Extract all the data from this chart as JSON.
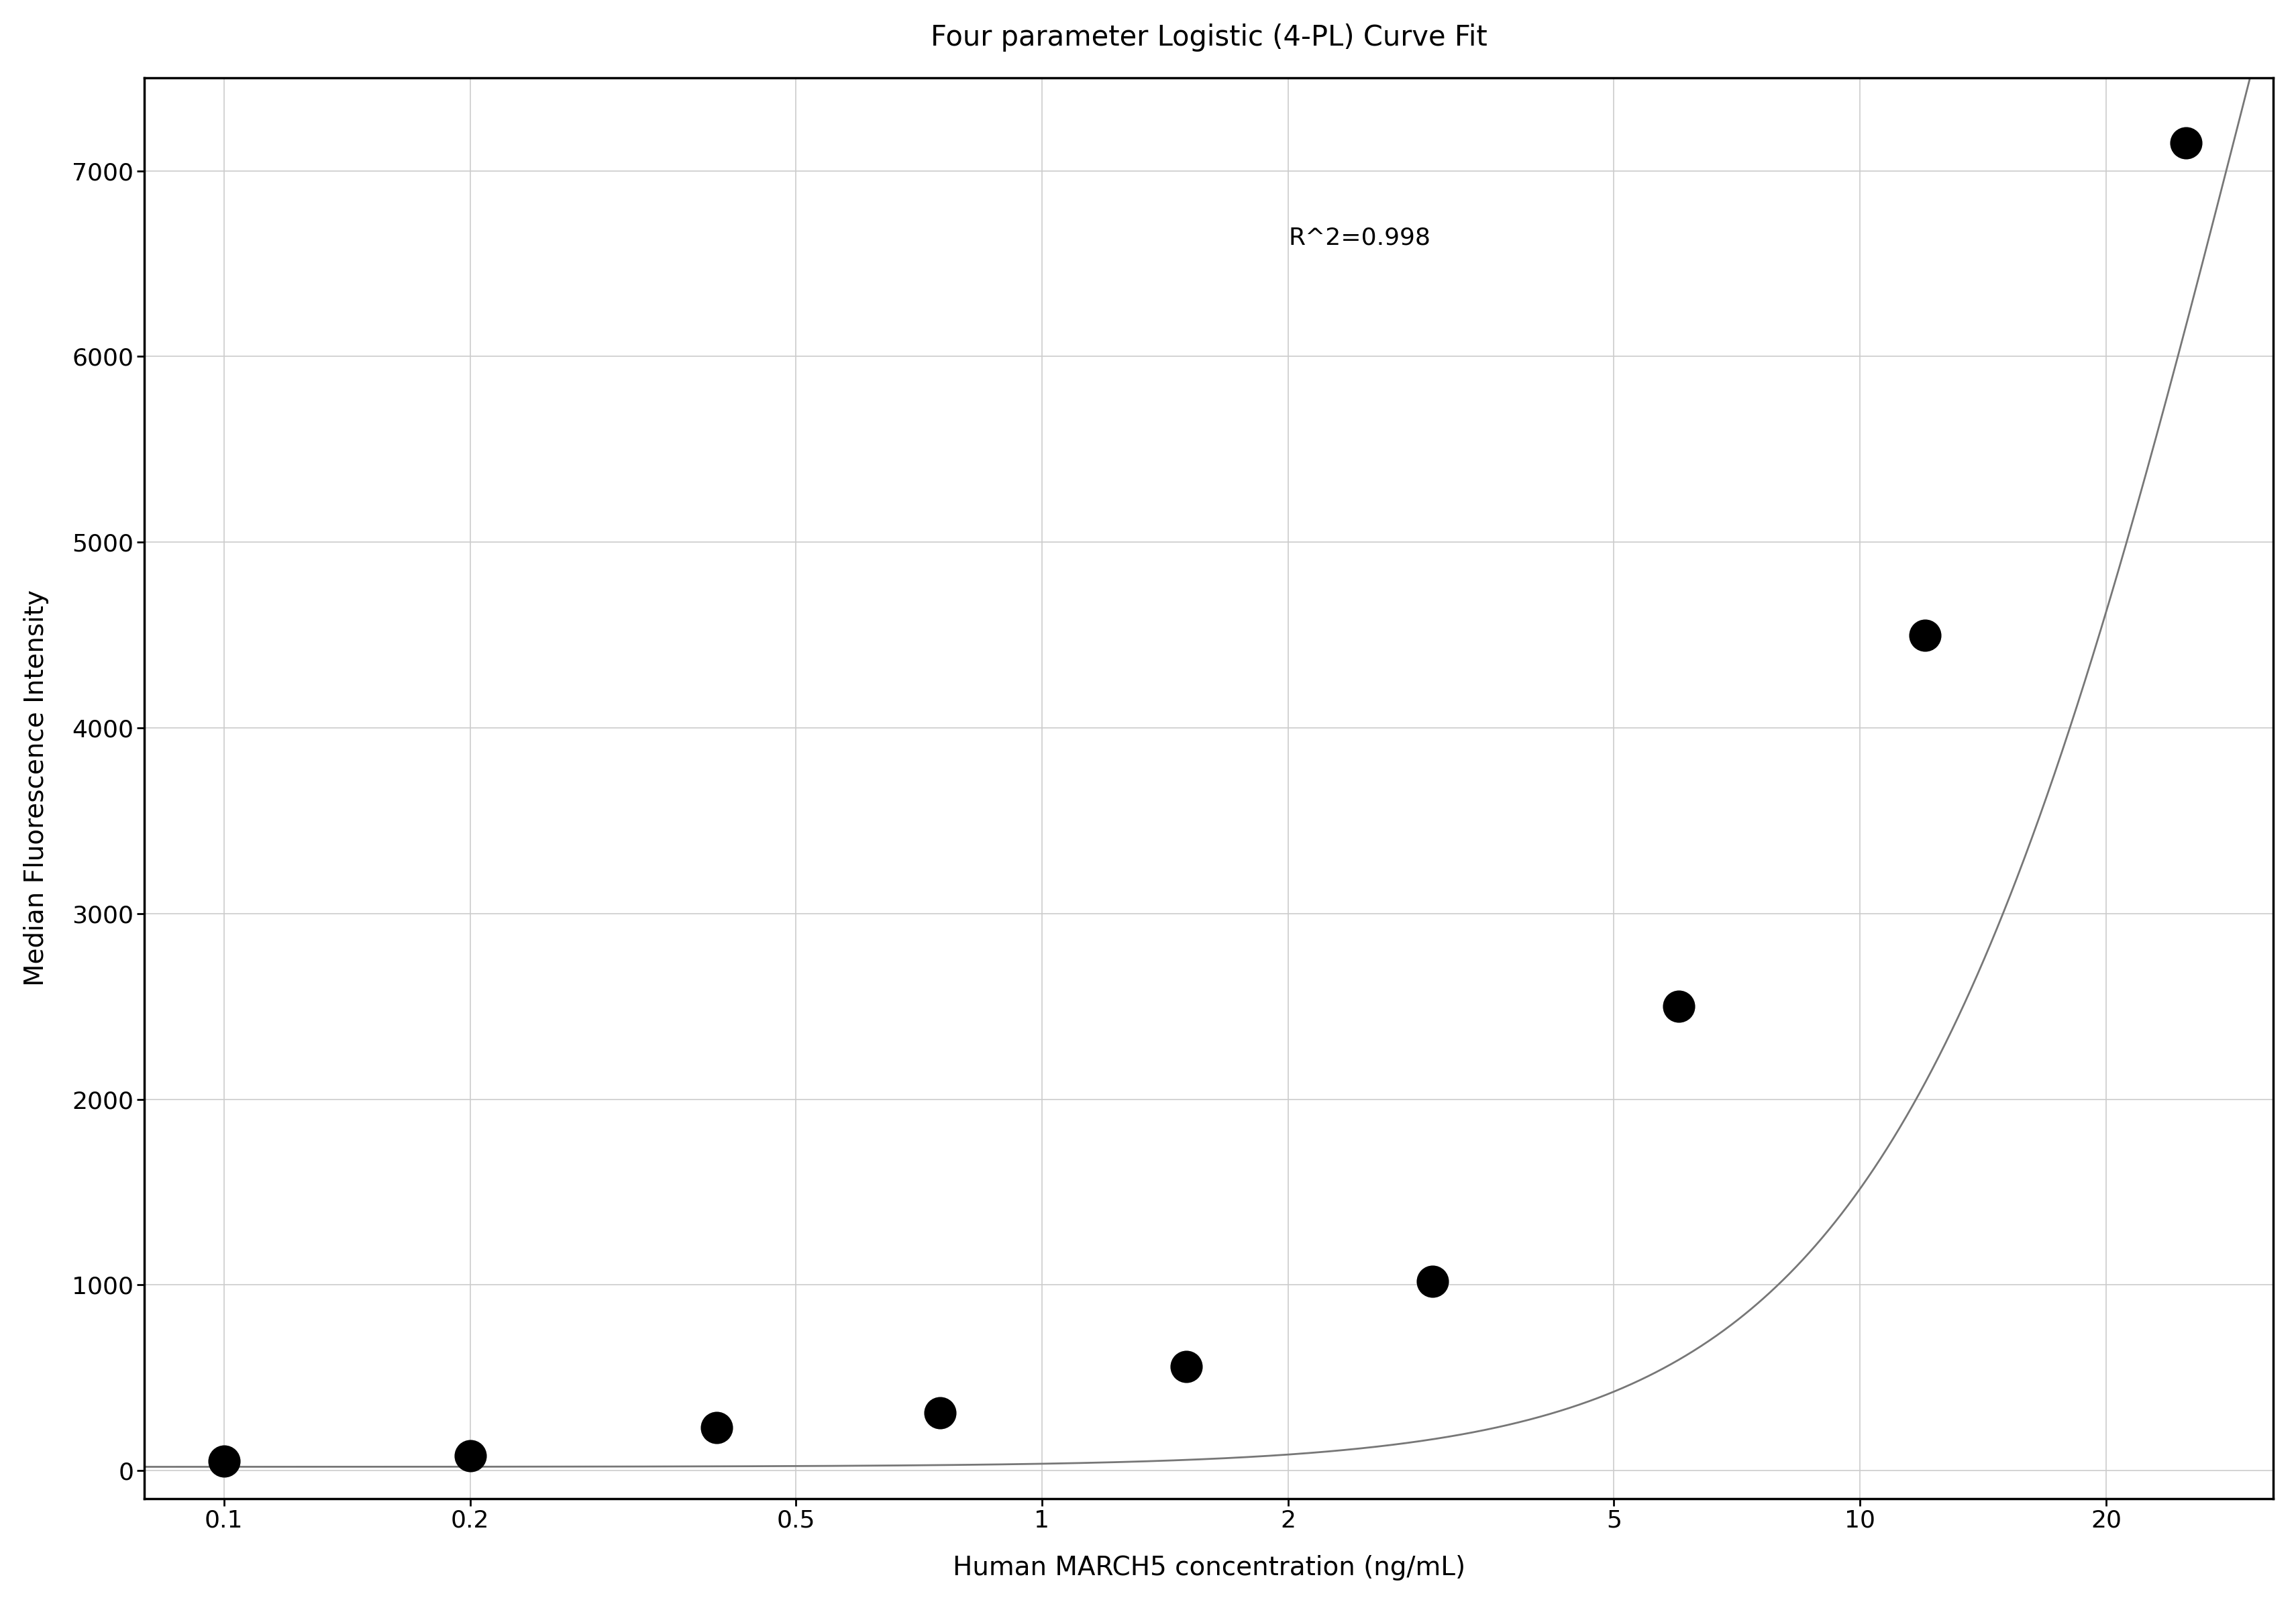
{
  "title": "Four parameter Logistic (4-PL) Curve Fit",
  "xlabel": "Human MARCH5 concentration (ng/mL)",
  "ylabel": "Median Fluorescence Intensity",
  "r_squared_text": "R^2=0.998",
  "data_points_x": [
    0.1,
    0.2,
    0.4,
    0.75,
    1.5,
    3.0,
    6.0,
    12.0,
    25.0
  ],
  "data_points_y": [
    50,
    80,
    230,
    310,
    560,
    1020,
    2500,
    4500,
    7150
  ],
  "xlim_log": [
    0.08,
    32
  ],
  "ylim": [
    -150,
    7500
  ],
  "yticks": [
    0,
    1000,
    2000,
    3000,
    4000,
    5000,
    6000,
    7000
  ],
  "xticks": [
    0.1,
    0.2,
    0.5,
    1,
    2,
    5,
    10,
    20
  ],
  "xtick_labels": [
    "0.1",
    "0.2",
    "0.5",
    "1",
    "2",
    "5",
    "10",
    "20"
  ],
  "curve_color": "#777777",
  "point_color": "#000000",
  "grid_color": "#cccccc",
  "bg_color": "#ffffff",
  "title_fontsize": 30,
  "label_fontsize": 28,
  "tick_fontsize": 26,
  "annotation_fontsize": 26,
  "point_size": 120,
  "line_width": 2.0,
  "spine_linewidth": 2.5,
  "r2_x": 2.0,
  "r2_y": 6700
}
